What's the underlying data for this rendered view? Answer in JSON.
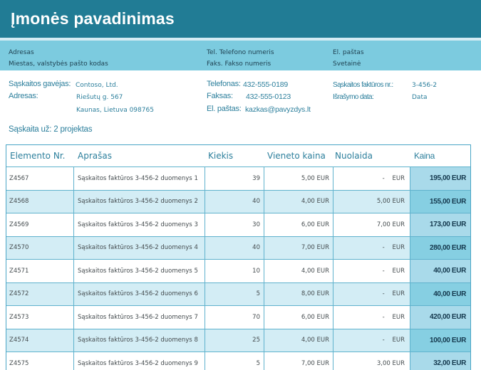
{
  "colors": {
    "header_band": "#217c95",
    "sub_band": "#7ccbdf",
    "accent_text": "#2c7f9c",
    "table_border": "#4aa5c6",
    "row_stripe": "#d3edf5",
    "total_col_light": "#a9daea",
    "total_col_dark": "#86cfe2"
  },
  "header": {
    "company_name": "Įmonės pavadinimas"
  },
  "address_band": {
    "col1": {
      "line1": "Adresas",
      "line2": "Miestas, valstybės pašto kodas"
    },
    "col2": {
      "line1": "Tel. Telefono numeris",
      "line2": "Faks. Fakso numeris"
    },
    "col3": {
      "line1": "El. paštas",
      "line2": "Svetainė"
    }
  },
  "bill_to": {
    "label1": "Sąskaitos gavėjas:",
    "value1": "Contoso, Ltd.",
    "label2": "Adresas:",
    "value2": "Riešutų g. 567",
    "value3": "Kaunas, Lietuva 098765"
  },
  "contact": {
    "label1": "Telefonas:",
    "value1": "432-555-0189",
    "label2": "Faksas:",
    "value2": "432-555-0123",
    "label3": "El. paštas:",
    "value3": "kazkas@pavyzdys.lt"
  },
  "invoice_meta": {
    "label1": "Sąskaitos faktūros nr.:",
    "value1": "3-456-2",
    "label2": "Išrašymo data:",
    "value2": "Data"
  },
  "invoice_for": {
    "label": "Sąskaita už:",
    "value": "2 projektas"
  },
  "table": {
    "headers": [
      "Elemento Nr.",
      "Aprašas",
      "Kiekis",
      "Vieneto kaina",
      "Nuolaida",
      "Kaina"
    ],
    "rows": [
      {
        "item": "Z4567",
        "desc": "Sąskaitos faktūros 3-456-2 duomenys 1",
        "qty": "39",
        "unit": "5,00 EUR",
        "discount": "-",
        "discount_cur": "EUR",
        "price": "195,00 EUR"
      },
      {
        "item": "Z4568",
        "desc": "Sąskaitos faktūros 3-456-2 duomenys 2",
        "qty": "40",
        "unit": "4,00 EUR",
        "discount": "5,00 EUR",
        "discount_cur": "",
        "price": "155,00 EUR"
      },
      {
        "item": "Z4569",
        "desc": "Sąskaitos faktūros 3-456-2 duomenys 3",
        "qty": "30",
        "unit": "6,00 EUR",
        "discount": "7,00 EUR",
        "discount_cur": "",
        "price": "173,00 EUR"
      },
      {
        "item": "Z4570",
        "desc": "Sąskaitos faktūros 3-456-2 duomenys 4",
        "qty": "40",
        "unit": "7,00 EUR",
        "discount": "-",
        "discount_cur": "EUR",
        "price": "280,00 EUR"
      },
      {
        "item": "Z4571",
        "desc": "Sąskaitos faktūros 3-456-2 duomenys 5",
        "qty": "10",
        "unit": "4,00 EUR",
        "discount": "-",
        "discount_cur": "EUR",
        "price": "40,00 EUR"
      },
      {
        "item": "Z4572",
        "desc": "Sąskaitos faktūros 3-456-2 duomenys 6",
        "qty": "5",
        "unit": "8,00 EUR",
        "discount": "-",
        "discount_cur": "EUR",
        "price": "40,00 EUR"
      },
      {
        "item": "Z4573",
        "desc": "Sąskaitos faktūros 3-456-2 duomenys 7",
        "qty": "70",
        "unit": "6,00 EUR",
        "discount": "-",
        "discount_cur": "EUR",
        "price": "420,00 EUR"
      },
      {
        "item": "Z4574",
        "desc": "Sąskaitos faktūros 3-456-2 duomenys 8",
        "qty": "25",
        "unit": "4,00 EUR",
        "discount": "-",
        "discount_cur": "EUR",
        "price": "100,00 EUR"
      },
      {
        "item": "Z4575",
        "desc": "Sąskaitos faktūros 3-456-2 duomenys 9",
        "qty": "5",
        "unit": "7,00 EUR",
        "discount": "3,00 EUR",
        "discount_cur": "",
        "price": "32,00 EUR"
      }
    ]
  }
}
